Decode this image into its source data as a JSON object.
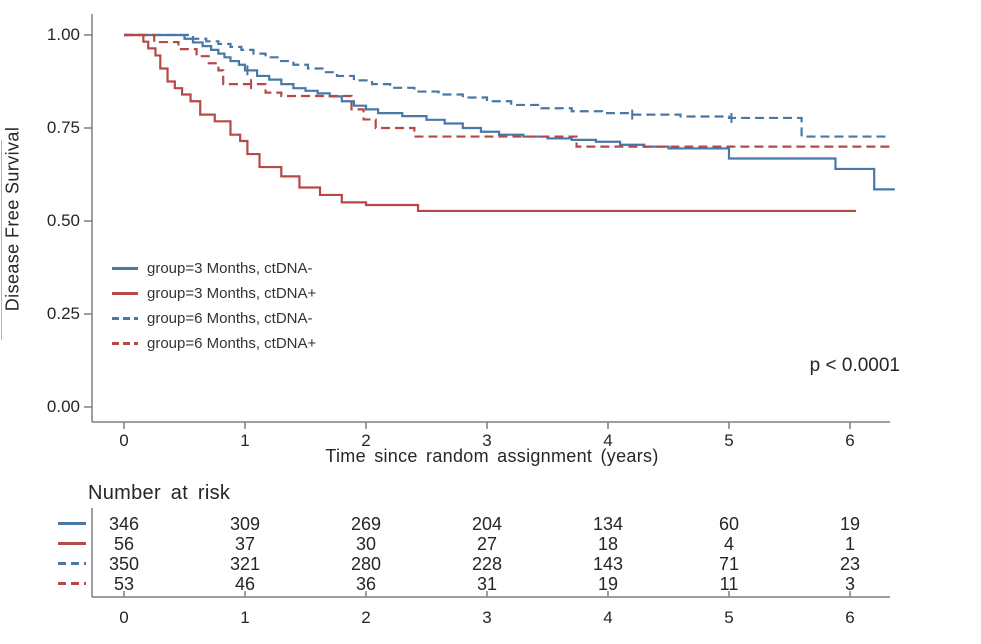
{
  "figure": {
    "p_value": "p < 0.0001"
  },
  "colors": {
    "blue": "#4878a8",
    "red": "#b64948",
    "axis": "#7f7f7f",
    "text": "#262626",
    "edge_artifact": "#b3b3b3"
  },
  "chart_data": {
    "type": "line",
    "variant": "kaplan_meier_step",
    "title": "",
    "xlabel": "Time since random assignment (years)",
    "ylabel": "Disease Free Survival",
    "xlim": [
      0,
      6.5
    ],
    "ylim": [
      0.0,
      1.0
    ],
    "grid": false,
    "x_ticks": [
      0,
      1,
      2,
      3,
      4,
      5,
      6
    ],
    "y_ticks": [
      {
        "value": 1.0,
        "label": "1.00"
      },
      {
        "value": 0.75,
        "label": "0.75"
      },
      {
        "value": 0.5,
        "label": "0.50"
      },
      {
        "value": 0.25,
        "label": "0.25"
      },
      {
        "value": 0.0,
        "label": "0.00"
      }
    ],
    "legend_position": "inside-left-middle",
    "annotation": {
      "text": "p < 0.0001",
      "position": "bottom-right"
    },
    "series": [
      {
        "name": "group=3 Months, ctDNA-",
        "color": "#4878a8",
        "line_style": "solid",
        "points": [
          [
            0,
            1.0
          ],
          [
            0.45,
            1.0
          ],
          [
            0.5,
            0.99
          ],
          [
            0.57,
            0.98
          ],
          [
            0.65,
            0.97
          ],
          [
            0.72,
            0.96
          ],
          [
            0.78,
            0.95
          ],
          [
            0.83,
            0.94
          ],
          [
            0.88,
            0.93
          ],
          [
            0.95,
            0.92
          ],
          [
            1.0,
            0.905
          ],
          [
            1.1,
            0.89
          ],
          [
            1.2,
            0.88
          ],
          [
            1.3,
            0.868
          ],
          [
            1.4,
            0.857
          ],
          [
            1.5,
            0.85
          ],
          [
            1.6,
            0.843
          ],
          [
            1.7,
            0.835
          ],
          [
            1.8,
            0.822
          ],
          [
            1.9,
            0.81
          ],
          [
            2.0,
            0.8
          ],
          [
            2.1,
            0.79
          ],
          [
            2.3,
            0.782
          ],
          [
            2.5,
            0.772
          ],
          [
            2.65,
            0.762
          ],
          [
            2.8,
            0.75
          ],
          [
            2.95,
            0.74
          ],
          [
            3.1,
            0.732
          ],
          [
            3.3,
            0.727
          ],
          [
            3.5,
            0.722
          ],
          [
            3.7,
            0.718
          ],
          [
            3.9,
            0.713
          ],
          [
            4.1,
            0.705
          ],
          [
            4.3,
            0.7
          ],
          [
            4.5,
            0.695
          ],
          [
            5.0,
            0.668
          ],
          [
            5.88,
            0.64
          ],
          [
            6.2,
            0.585
          ],
          [
            6.37,
            0.585
          ]
        ]
      },
      {
        "name": "group=3 Months, ctDNA+",
        "color": "#b64948",
        "line_style": "solid",
        "points": [
          [
            0,
            1.0
          ],
          [
            0.13,
            1.0
          ],
          [
            0.16,
            0.982
          ],
          [
            0.2,
            0.964
          ],
          [
            0.26,
            0.945
          ],
          [
            0.3,
            0.91
          ],
          [
            0.36,
            0.875
          ],
          [
            0.42,
            0.857
          ],
          [
            0.48,
            0.84
          ],
          [
            0.55,
            0.822
          ],
          [
            0.63,
            0.786
          ],
          [
            0.75,
            0.768
          ],
          [
            0.88,
            0.732
          ],
          [
            0.96,
            0.715
          ],
          [
            1.02,
            0.68
          ],
          [
            1.12,
            0.645
          ],
          [
            1.3,
            0.62
          ],
          [
            1.45,
            0.59
          ],
          [
            1.62,
            0.57
          ],
          [
            1.8,
            0.55
          ],
          [
            2.0,
            0.543
          ],
          [
            2.43,
            0.527
          ],
          [
            6.05,
            0.527
          ]
        ]
      },
      {
        "name": "group=6 Months, ctDNA-",
        "color": "#4878a8",
        "line_style": "dashed",
        "points": [
          [
            0,
            1.0
          ],
          [
            0.5,
            1.0
          ],
          [
            0.57,
            0.99
          ],
          [
            0.68,
            0.983
          ],
          [
            0.78,
            0.976
          ],
          [
            0.88,
            0.968
          ],
          [
            0.97,
            0.96
          ],
          [
            1.07,
            0.95
          ],
          [
            1.17,
            0.94
          ],
          [
            1.28,
            0.93
          ],
          [
            1.4,
            0.92
          ],
          [
            1.52,
            0.91
          ],
          [
            1.64,
            0.9
          ],
          [
            1.76,
            0.89
          ],
          [
            1.9,
            0.878
          ],
          [
            2.05,
            0.868
          ],
          [
            2.2,
            0.858
          ],
          [
            2.4,
            0.848
          ],
          [
            2.6,
            0.84
          ],
          [
            2.8,
            0.832
          ],
          [
            3.0,
            0.822
          ],
          [
            3.2,
            0.812
          ],
          [
            3.45,
            0.803
          ],
          [
            3.7,
            0.795
          ],
          [
            3.95,
            0.79
          ],
          [
            4.2,
            0.786
          ],
          [
            4.6,
            0.781
          ],
          [
            5.0,
            0.777
          ],
          [
            5.6,
            0.727
          ],
          [
            6.3,
            0.727
          ]
        ]
      },
      {
        "name": "group=6 Months, ctDNA+",
        "color": "#b64948",
        "line_style": "dashed",
        "points": [
          [
            0,
            1.0
          ],
          [
            0.2,
            1.0
          ],
          [
            0.25,
            0.981
          ],
          [
            0.45,
            0.962
          ],
          [
            0.6,
            0.943
          ],
          [
            0.7,
            0.924
          ],
          [
            0.78,
            0.905
          ],
          [
            0.82,
            0.868
          ],
          [
            1.17,
            0.845
          ],
          [
            1.3,
            0.836
          ],
          [
            1.88,
            0.8
          ],
          [
            1.98,
            0.773
          ],
          [
            2.08,
            0.75
          ],
          [
            2.4,
            0.727
          ],
          [
            3.74,
            0.7
          ],
          [
            6.35,
            0.7
          ]
        ]
      }
    ],
    "censor_marks": [
      {
        "series": 0,
        "t": 1.02,
        "s": 0.905
      },
      {
        "series": 3,
        "t": 1.05,
        "s": 0.868
      },
      {
        "series": 2,
        "t": 4.2,
        "s": 0.786
      },
      {
        "series": 2,
        "t": 5.02,
        "s": 0.777
      }
    ],
    "number_at_risk": {
      "title": "Number at risk",
      "time_points": [
        0,
        1,
        2,
        3,
        4,
        5,
        6
      ],
      "rows": [
        {
          "series": "group=3 Months, ctDNA-",
          "color": "#4878a8",
          "line_style": "solid",
          "counts": [
            346,
            309,
            269,
            204,
            134,
            60,
            19
          ]
        },
        {
          "series": "group=3 Months, ctDNA+",
          "color": "#b64948",
          "line_style": "solid",
          "counts": [
            56,
            37,
            30,
            27,
            18,
            4,
            1
          ]
        },
        {
          "series": "group=6 Months, ctDNA-",
          "color": "#4878a8",
          "line_style": "dashed",
          "counts": [
            350,
            321,
            280,
            228,
            143,
            71,
            23
          ]
        },
        {
          "series": "group=6 Months, ctDNA+",
          "color": "#b64948",
          "line_style": "dashed",
          "counts": [
            53,
            46,
            36,
            31,
            19,
            11,
            3
          ]
        }
      ]
    }
  }
}
